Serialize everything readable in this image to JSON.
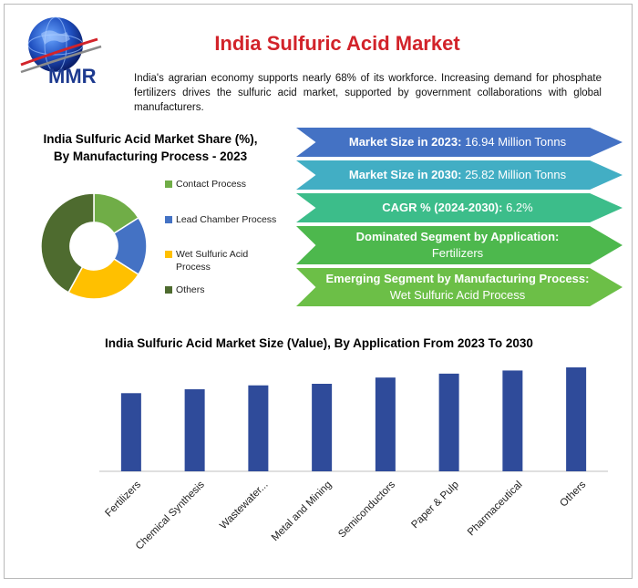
{
  "header": {
    "logo_text": "MMR",
    "title": "India Sulfuric Acid Market",
    "intro": "India's agrarian economy supports nearly 68% of its workforce. Increasing demand for phosphate fertilizers drives the sulfuric acid market, supported by government collaborations with global manufacturers."
  },
  "highlights": [
    {
      "label": "Market Size in 2023:",
      "value": "16.94 Million Tonns",
      "color": "#4472c4"
    },
    {
      "label": "Market Size in 2030:",
      "value": "25.82 Million Tonns",
      "color": "#42aec4"
    },
    {
      "label": "CAGR % (2024-2030):",
      "value": "6.2%",
      "color": "#3cbd8a"
    },
    {
      "label": "Dominated Segment by Application:",
      "value": "Fertilizers",
      "color": "#4db84d"
    },
    {
      "label": "Emerging Segment by Manufacturing Process:",
      "value": "Wet Sulfuric Acid Process",
      "color": "#6cbf47"
    }
  ],
  "chart_data": [
    {
      "type": "pie",
      "title": "India Sulfuric Acid Market Share (%), By Manufacturing Process - 2023",
      "categories": [
        "Contact Process",
        "Lead Chamber Process",
        "Wet Sulfuric Acid Process",
        "Others"
      ],
      "values": [
        16,
        18,
        24,
        42
      ],
      "colors": [
        "#70ad47",
        "#4472c4",
        "#ffc000",
        "#4e6b2f"
      ],
      "hole": 0.45,
      "legend": "right"
    },
    {
      "type": "bar",
      "title": "India Sulfuric Acid Market Size (Value), By Application From 2023 To 2030",
      "categories": [
        "Fertilizers",
        "Chemical Synthesis",
        "Wastewater...",
        "Metal and Mining",
        "Semiconductors",
        "Paper & Pulp",
        "Pharmaceutical",
        "Others"
      ],
      "values": [
        1.0,
        1.05,
        1.1,
        1.12,
        1.2,
        1.25,
        1.29,
        1.33
      ],
      "ylim": [
        0,
        1.4
      ],
      "color": "#2f4b9a",
      "grid": false
    }
  ]
}
